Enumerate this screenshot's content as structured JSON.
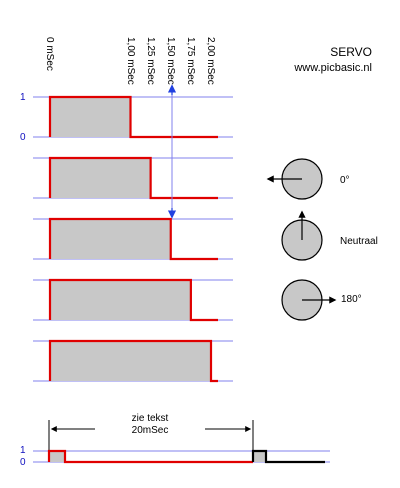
{
  "title": "SERVO",
  "url": "www.picbasic.nl",
  "time_labels": [
    "0 mSec",
    "1,00 mSec",
    "1,25 mSec",
    "1,50 mSec",
    "1,75 mSec",
    "2,00 mSec"
  ],
  "level_high": "1",
  "level_low": "0",
  "pulses": [
    {
      "width_ms": 1.0
    },
    {
      "width_ms": 1.25
    },
    {
      "width_ms": 1.5
    },
    {
      "width_ms": 1.75
    },
    {
      "width_ms": 2.0
    }
  ],
  "positions": [
    "0°",
    "Neutraal",
    "180°"
  ],
  "period_note_1": "zie tekst",
  "period_note_2": "20mSec",
  "colors": {
    "signal": "#e00000",
    "fill": "#c8c8c8",
    "rail": "#8080ee",
    "arrow": "#2040e0",
    "next_period": "#000000"
  }
}
